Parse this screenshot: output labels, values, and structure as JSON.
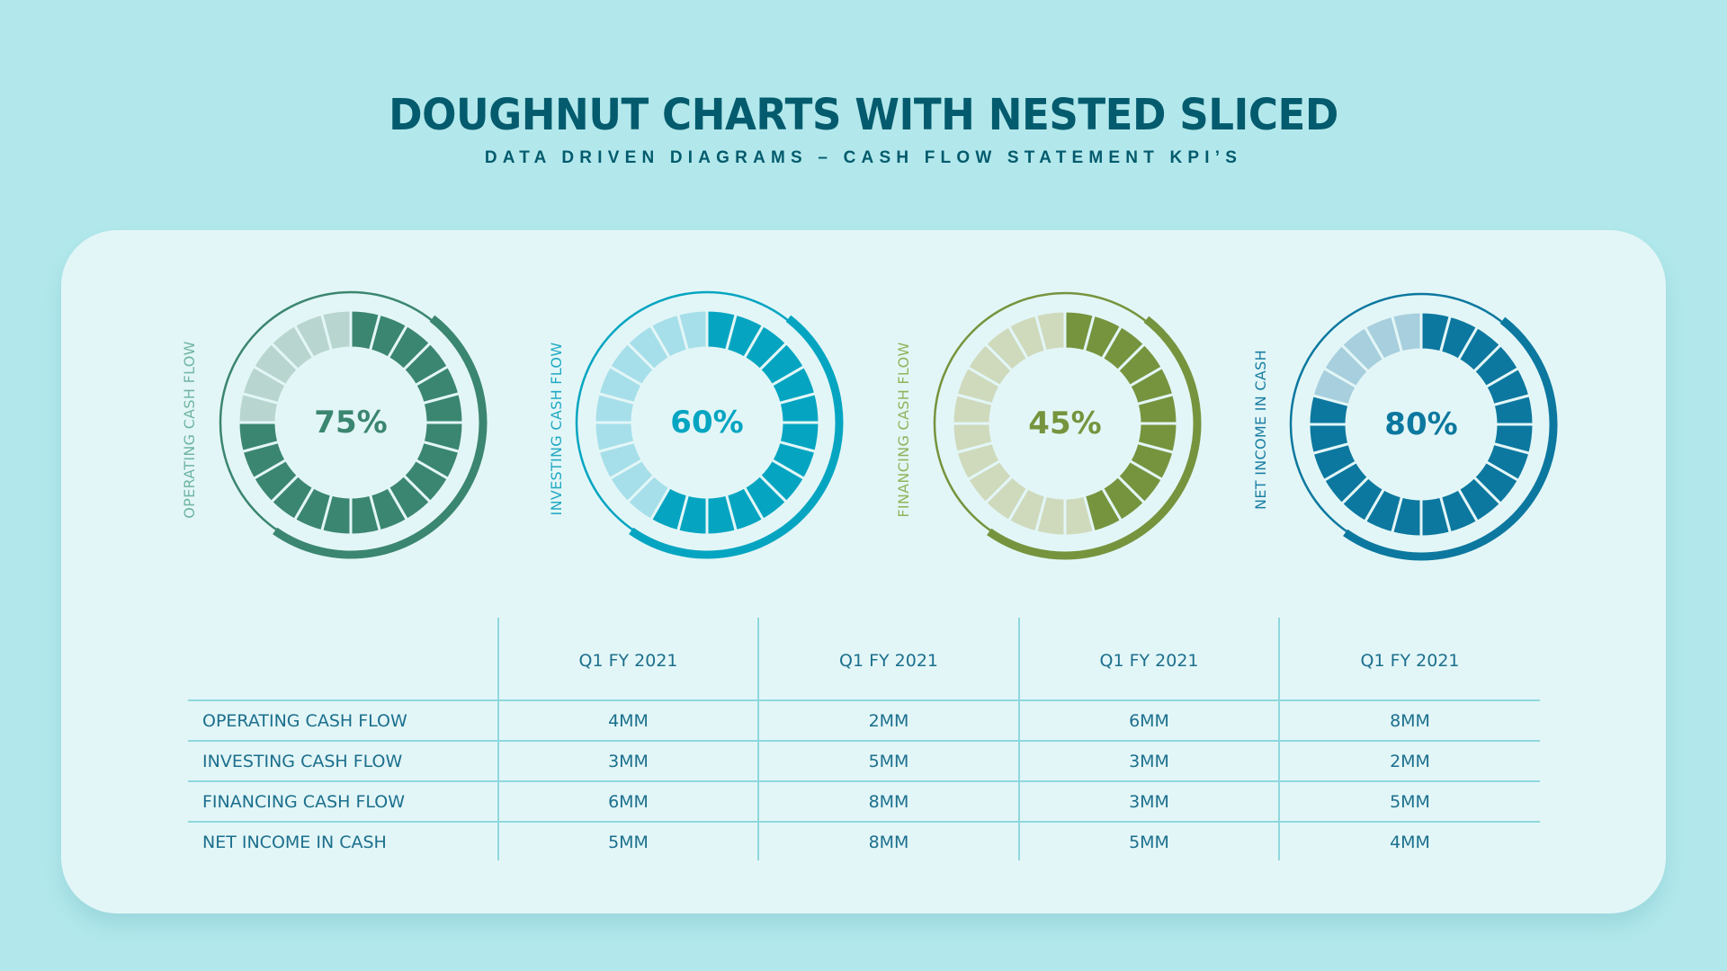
{
  "header": {
    "title": "DOUGHNUT CHARTS WITH NESTED SLICED",
    "subtitle": "DATA DRIVEN DIAGRAMS – CASH FLOW STATEMENT KPI’S"
  },
  "colors": {
    "background": "#b2e8ec",
    "card": "#e3f6f7",
    "title": "#035b6d",
    "table_text": "#1b6f8d",
    "table_lines": "#8ed8de"
  },
  "charts": [
    {
      "label": "OPERATING CASH FLOW",
      "percent_label": "75%",
      "value": 75,
      "segments": 24,
      "dark": "#3b8670",
      "light": "#b8d5cf",
      "label_color": "#6fb5a3"
    },
    {
      "label": "INVESTING CASH FLOW",
      "percent_label": "60%",
      "value": 60,
      "segments": 24,
      "dark": "#05a5c1",
      "light": "#a6dfe9",
      "label_color": "#21a9c2"
    },
    {
      "label": "FINANCING CASH FLOW",
      "percent_label": "45%",
      "value": 45,
      "segments": 24,
      "dark": "#76943e",
      "light": "#cfdabd",
      "label_color": "#8fb45a"
    },
    {
      "label": "NET INCOME IN CASH",
      "percent_label": "80%",
      "value": 80,
      "segments": 24,
      "dark": "#0c789f",
      "light": "#a7cfdd",
      "label_color": "#1a7ea3"
    }
  ],
  "table": {
    "columns": [
      "",
      "Q1 FY 2021",
      "Q1 FY 2021",
      "Q1 FY 2021",
      "Q1 FY 2021"
    ],
    "rows": [
      {
        "label": "OPERATING CASH FLOW",
        "values": [
          "4MM",
          "2MM",
          "6MM",
          "8MM"
        ]
      },
      {
        "label": "INVESTING CASH FLOW",
        "values": [
          "3MM",
          "5MM",
          "3MM",
          "2MM"
        ]
      },
      {
        "label": "FINANCING CASH FLOW",
        "values": [
          "6MM",
          "8MM",
          "3MM",
          "5MM"
        ]
      },
      {
        "label": "NET INCOME IN CASH",
        "values": [
          "5MM",
          "8MM",
          "5MM",
          "4MM"
        ]
      }
    ]
  },
  "chart_data": [
    {
      "type": "pie",
      "subtype": "doughnut",
      "title": "DOUGHNUT CHARTS WITH NESTED SLICED",
      "subtitle": "DATA DRIVEN DIAGRAMS – CASH FLOW STATEMENT KPI’S",
      "series": [
        {
          "name": "OPERATING CASH FLOW",
          "value": 75,
          "remainder": 25,
          "segments": 24
        },
        {
          "name": "INVESTING CASH FLOW",
          "value": 60,
          "remainder": 40,
          "segments": 24
        },
        {
          "name": "FINANCING CASH FLOW",
          "value": 45,
          "remainder": 55,
          "segments": 24
        },
        {
          "name": "NET INCOME IN CASH",
          "value": 80,
          "remainder": 20,
          "segments": 24
        }
      ],
      "unit": "%"
    },
    {
      "type": "table",
      "columns": [
        "",
        "Q1 FY 2021",
        "Q1 FY 2021",
        "Q1 FY 2021",
        "Q1 FY 2021"
      ],
      "rows": [
        [
          "OPERATING CASH FLOW",
          "4MM",
          "2MM",
          "6MM",
          "8MM"
        ],
        [
          "INVESTING CASH FLOW",
          "3MM",
          "5MM",
          "3MM",
          "2MM"
        ],
        [
          "FINANCING CASH FLOW",
          "6MM",
          "8MM",
          "3MM",
          "5MM"
        ],
        [
          "NET INCOME IN CASH",
          "5MM",
          "8MM",
          "5MM",
          "4MM"
        ]
      ]
    }
  ]
}
